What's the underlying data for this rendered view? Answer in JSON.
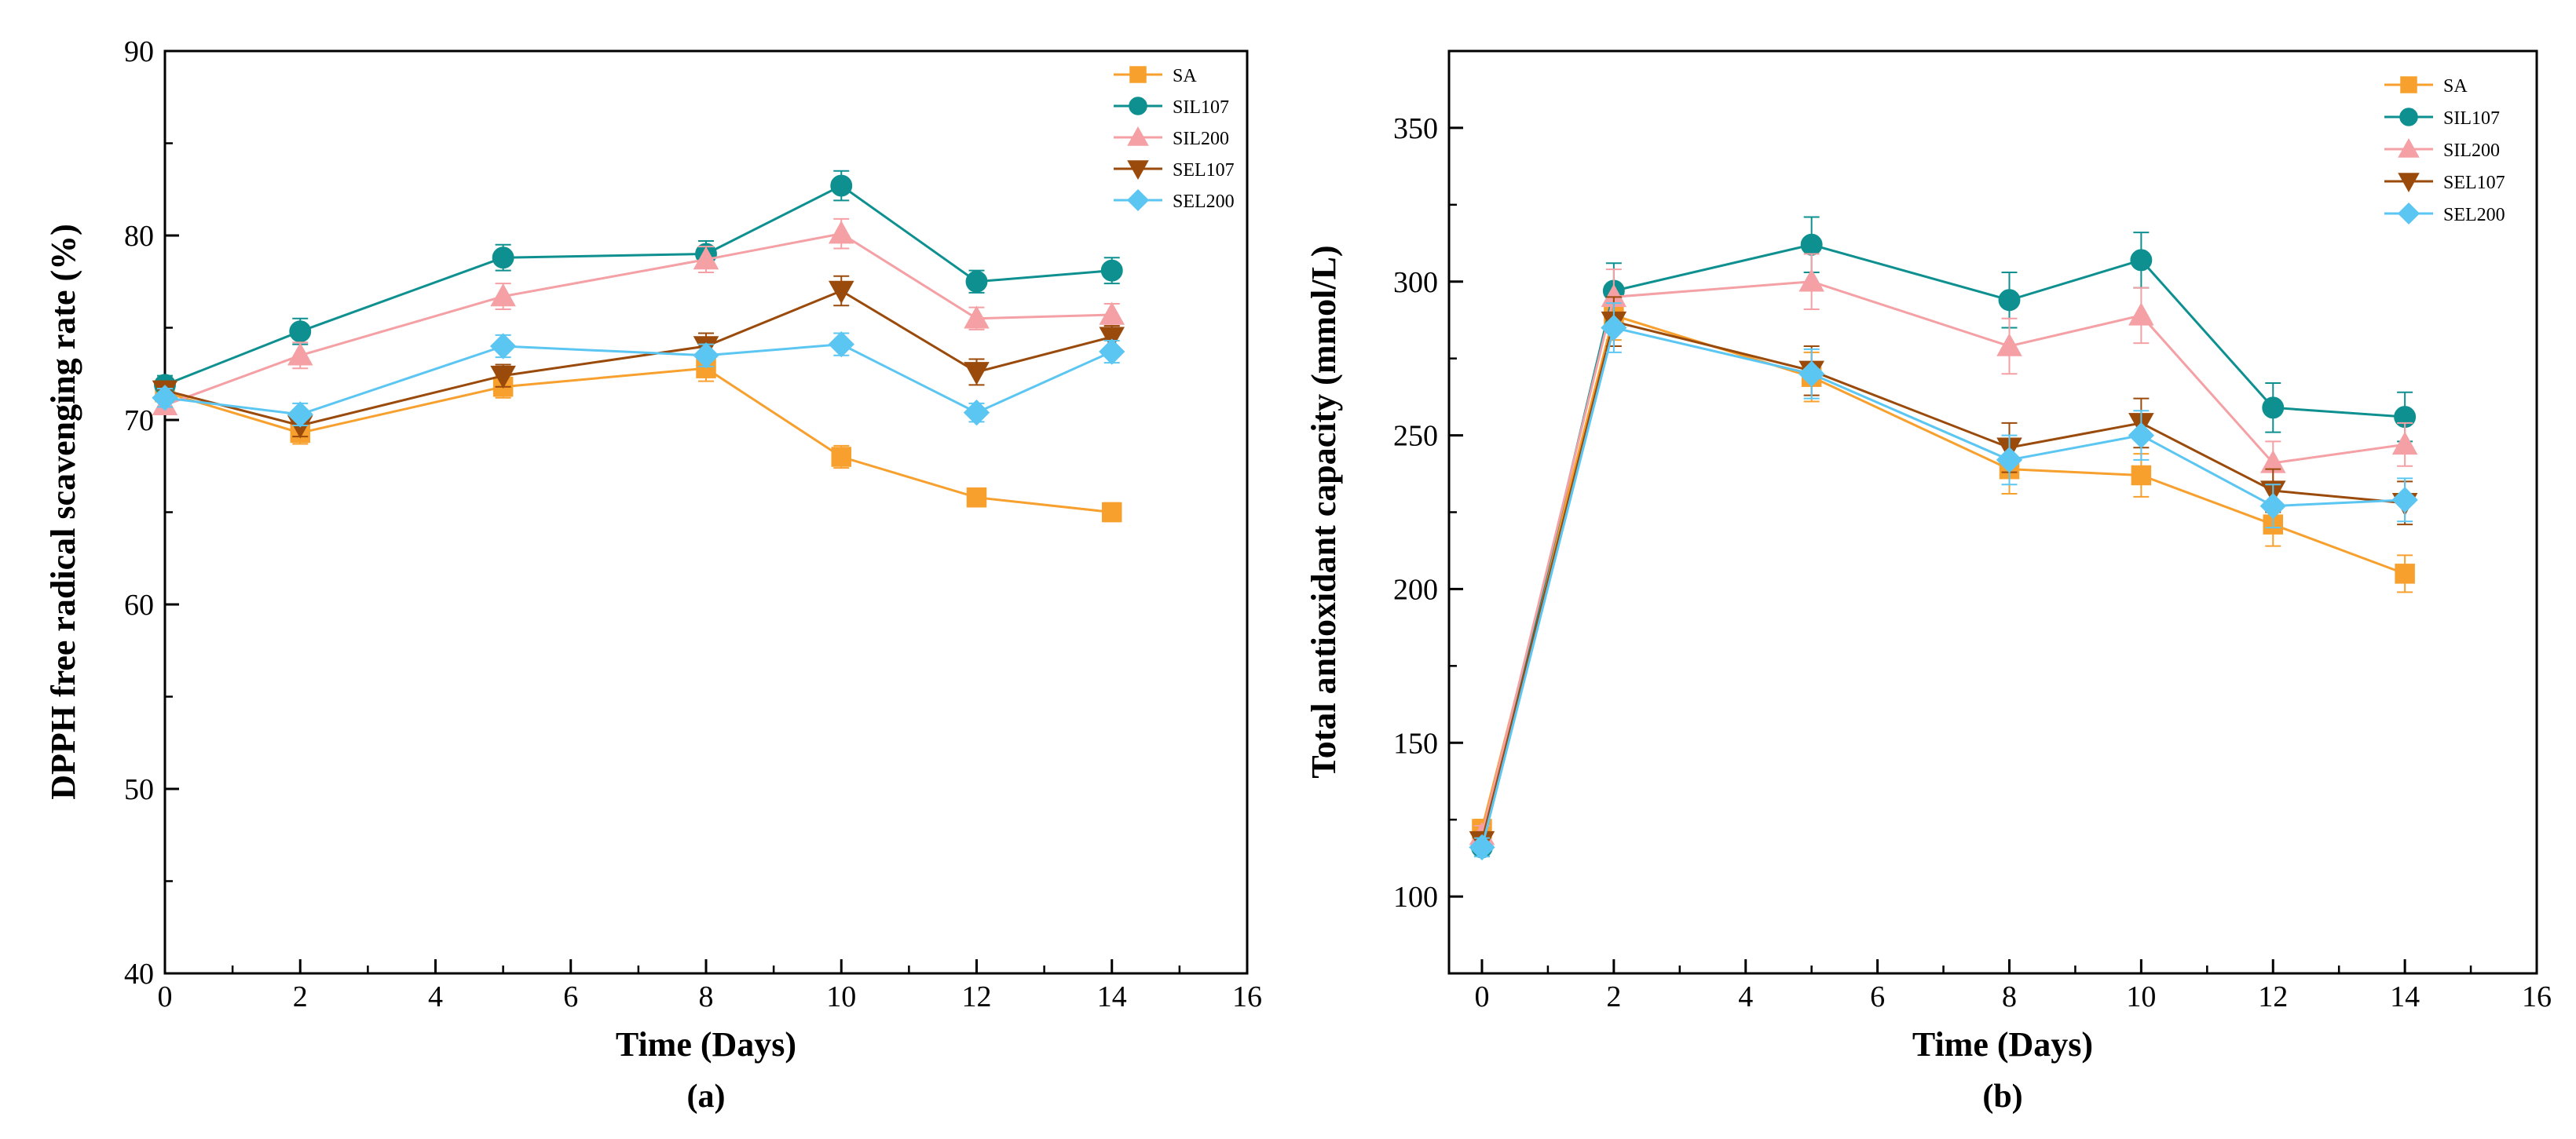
{
  "colors": {
    "SA": "#F7A02E",
    "SIL107": "#0E9090",
    "SIL200": "#F4A0A4",
    "SEL107": "#9A4A0A",
    "SEL200": "#5CC6F2"
  },
  "chart_data": [
    {
      "panel_label": "(a)",
      "type": "line",
      "title": "",
      "xlabel": "Time (Days)",
      "ylabel": "DPPH free radical scavenging rate (%)",
      "xlim": [
        0,
        16
      ],
      "ylim": [
        40,
        90
      ],
      "xticks": [
        0,
        2,
        4,
        6,
        8,
        10,
        12,
        14,
        16
      ],
      "xtick_labels": [
        "0",
        "2",
        "4",
        "6",
        "8",
        "10",
        "12",
        "14",
        "16"
      ],
      "yticks": [
        40,
        50,
        60,
        70,
        80,
        90
      ],
      "ytick_labels": [
        "40",
        "50",
        "60",
        "70",
        "80",
        "90"
      ],
      "legend_position": "top-right",
      "x": [
        0,
        2,
        5,
        8,
        10,
        12,
        14
      ],
      "series": [
        {
          "name": "SA",
          "marker": "square",
          "values": [
            71.5,
            69.3,
            71.8,
            72.8,
            68.0,
            65.8,
            65.0
          ],
          "errors": [
            0.5,
            0.6,
            0.6,
            0.7,
            0.6,
            0.5,
            0.5
          ]
        },
        {
          "name": "SIL107",
          "marker": "circle",
          "values": [
            71.9,
            74.8,
            78.8,
            79.0,
            82.7,
            77.5,
            78.1
          ],
          "errors": [
            0.5,
            0.7,
            0.7,
            0.7,
            0.8,
            0.6,
            0.7
          ]
        },
        {
          "name": "SIL200",
          "marker": "triangle-up",
          "values": [
            70.8,
            73.5,
            76.7,
            78.7,
            80.1,
            75.5,
            75.7
          ],
          "errors": [
            0.5,
            0.7,
            0.7,
            0.7,
            0.8,
            0.6,
            0.6
          ]
        },
        {
          "name": "SEL107",
          "marker": "triangle-down",
          "values": [
            71.6,
            69.7,
            72.4,
            74.0,
            77.0,
            72.6,
            74.5
          ],
          "errors": [
            0.5,
            0.6,
            0.6,
            0.7,
            0.8,
            0.7,
            0.6
          ]
        },
        {
          "name": "SEL200",
          "marker": "diamond",
          "values": [
            71.2,
            70.3,
            74.0,
            73.5,
            74.1,
            70.4,
            73.7
          ],
          "errors": [
            0.5,
            0.6,
            0.6,
            0.6,
            0.6,
            0.5,
            0.6
          ]
        }
      ]
    },
    {
      "panel_label": "(b)",
      "type": "line",
      "title": "",
      "xlabel": "Time (Days)",
      "ylabel": "Total antioxidant capacity (mmol/L)",
      "xlim": [
        -0.5,
        16
      ],
      "ylim": [
        75,
        375
      ],
      "xticks": [
        0,
        2,
        4,
        6,
        8,
        10,
        12,
        14,
        16
      ],
      "xtick_labels": [
        "0",
        "2",
        "4",
        "6",
        "8",
        "10",
        "12",
        "14",
        "16"
      ],
      "yticks": [
        100,
        150,
        200,
        250,
        300,
        350
      ],
      "ytick_labels": [
        "100",
        "150",
        "200",
        "250",
        "300",
        "350"
      ],
      "legend_position": "top-right",
      "x": [
        0,
        2,
        5,
        8,
        10,
        12,
        14
      ],
      "series": [
        {
          "name": "SA",
          "marker": "square",
          "values": [
            122,
            289,
            269,
            239,
            237,
            221,
            205
          ],
          "errors": [
            3,
            8,
            8,
            8,
            7,
            7,
            6
          ]
        },
        {
          "name": "SIL107",
          "marker": "circle",
          "values": [
            116,
            297,
            312,
            294,
            307,
            259,
            256
          ],
          "errors": [
            3,
            9,
            9,
            9,
            9,
            8,
            8
          ]
        },
        {
          "name": "SIL200",
          "marker": "triangle-up",
          "values": [
            120,
            295,
            300,
            279,
            289,
            241,
            247
          ],
          "errors": [
            3,
            9,
            9,
            9,
            9,
            7,
            7
          ]
        },
        {
          "name": "SEL107",
          "marker": "triangle-down",
          "values": [
            118,
            287,
            271,
            246,
            254,
            232,
            228
          ],
          "errors": [
            3,
            8,
            8,
            8,
            8,
            7,
            7
          ]
        },
        {
          "name": "SEL200",
          "marker": "diamond",
          "values": [
            116,
            285,
            270,
            242,
            250,
            227,
            229
          ],
          "errors": [
            3,
            8,
            8,
            8,
            8,
            7,
            7
          ]
        }
      ]
    }
  ]
}
